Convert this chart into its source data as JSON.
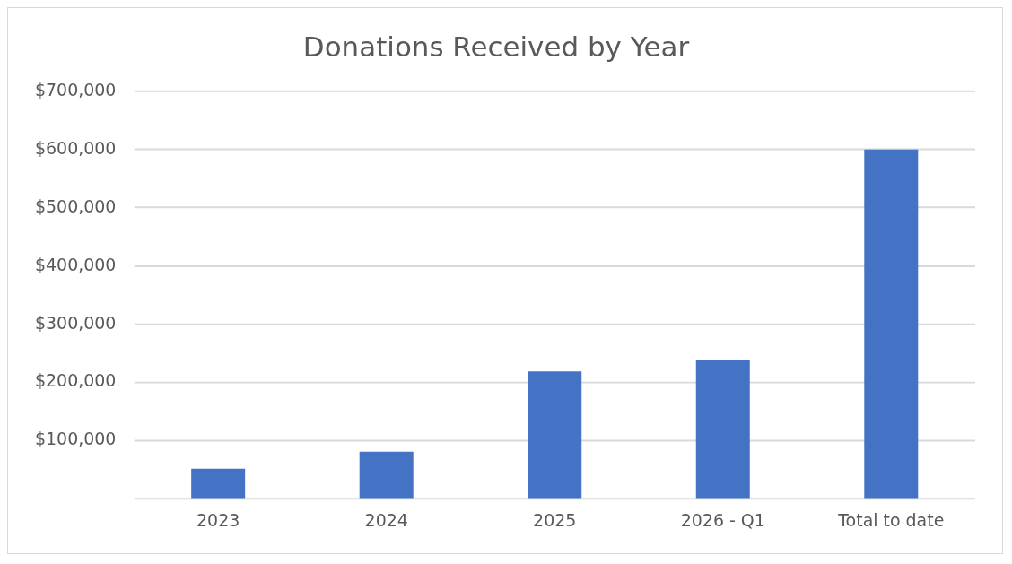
{
  "chart_data": {
    "type": "bar",
    "title": "Donations Received by Year",
    "categories": [
      "2023",
      "2024",
      "2025",
      "2026 - Q1",
      "Total to date"
    ],
    "values": [
      52000,
      81000,
      219000,
      239000,
      600000
    ],
    "color": "#4472c4",
    "ylim": [
      0,
      700000
    ],
    "yticks": [
      {
        "value": 0,
        "label": null
      },
      {
        "value": 100000,
        "label": "$100,000"
      },
      {
        "value": 200000,
        "label": "$200,000"
      },
      {
        "value": 300000,
        "label": "$300,000"
      },
      {
        "value": 400000,
        "label": "$400,000"
      },
      {
        "value": 500000,
        "label": "$500,000"
      },
      {
        "value": 600000,
        "label": "$600,000"
      },
      {
        "value": 700000,
        "label": "$700,000"
      }
    ],
    "grid": "y",
    "legend": false
  }
}
